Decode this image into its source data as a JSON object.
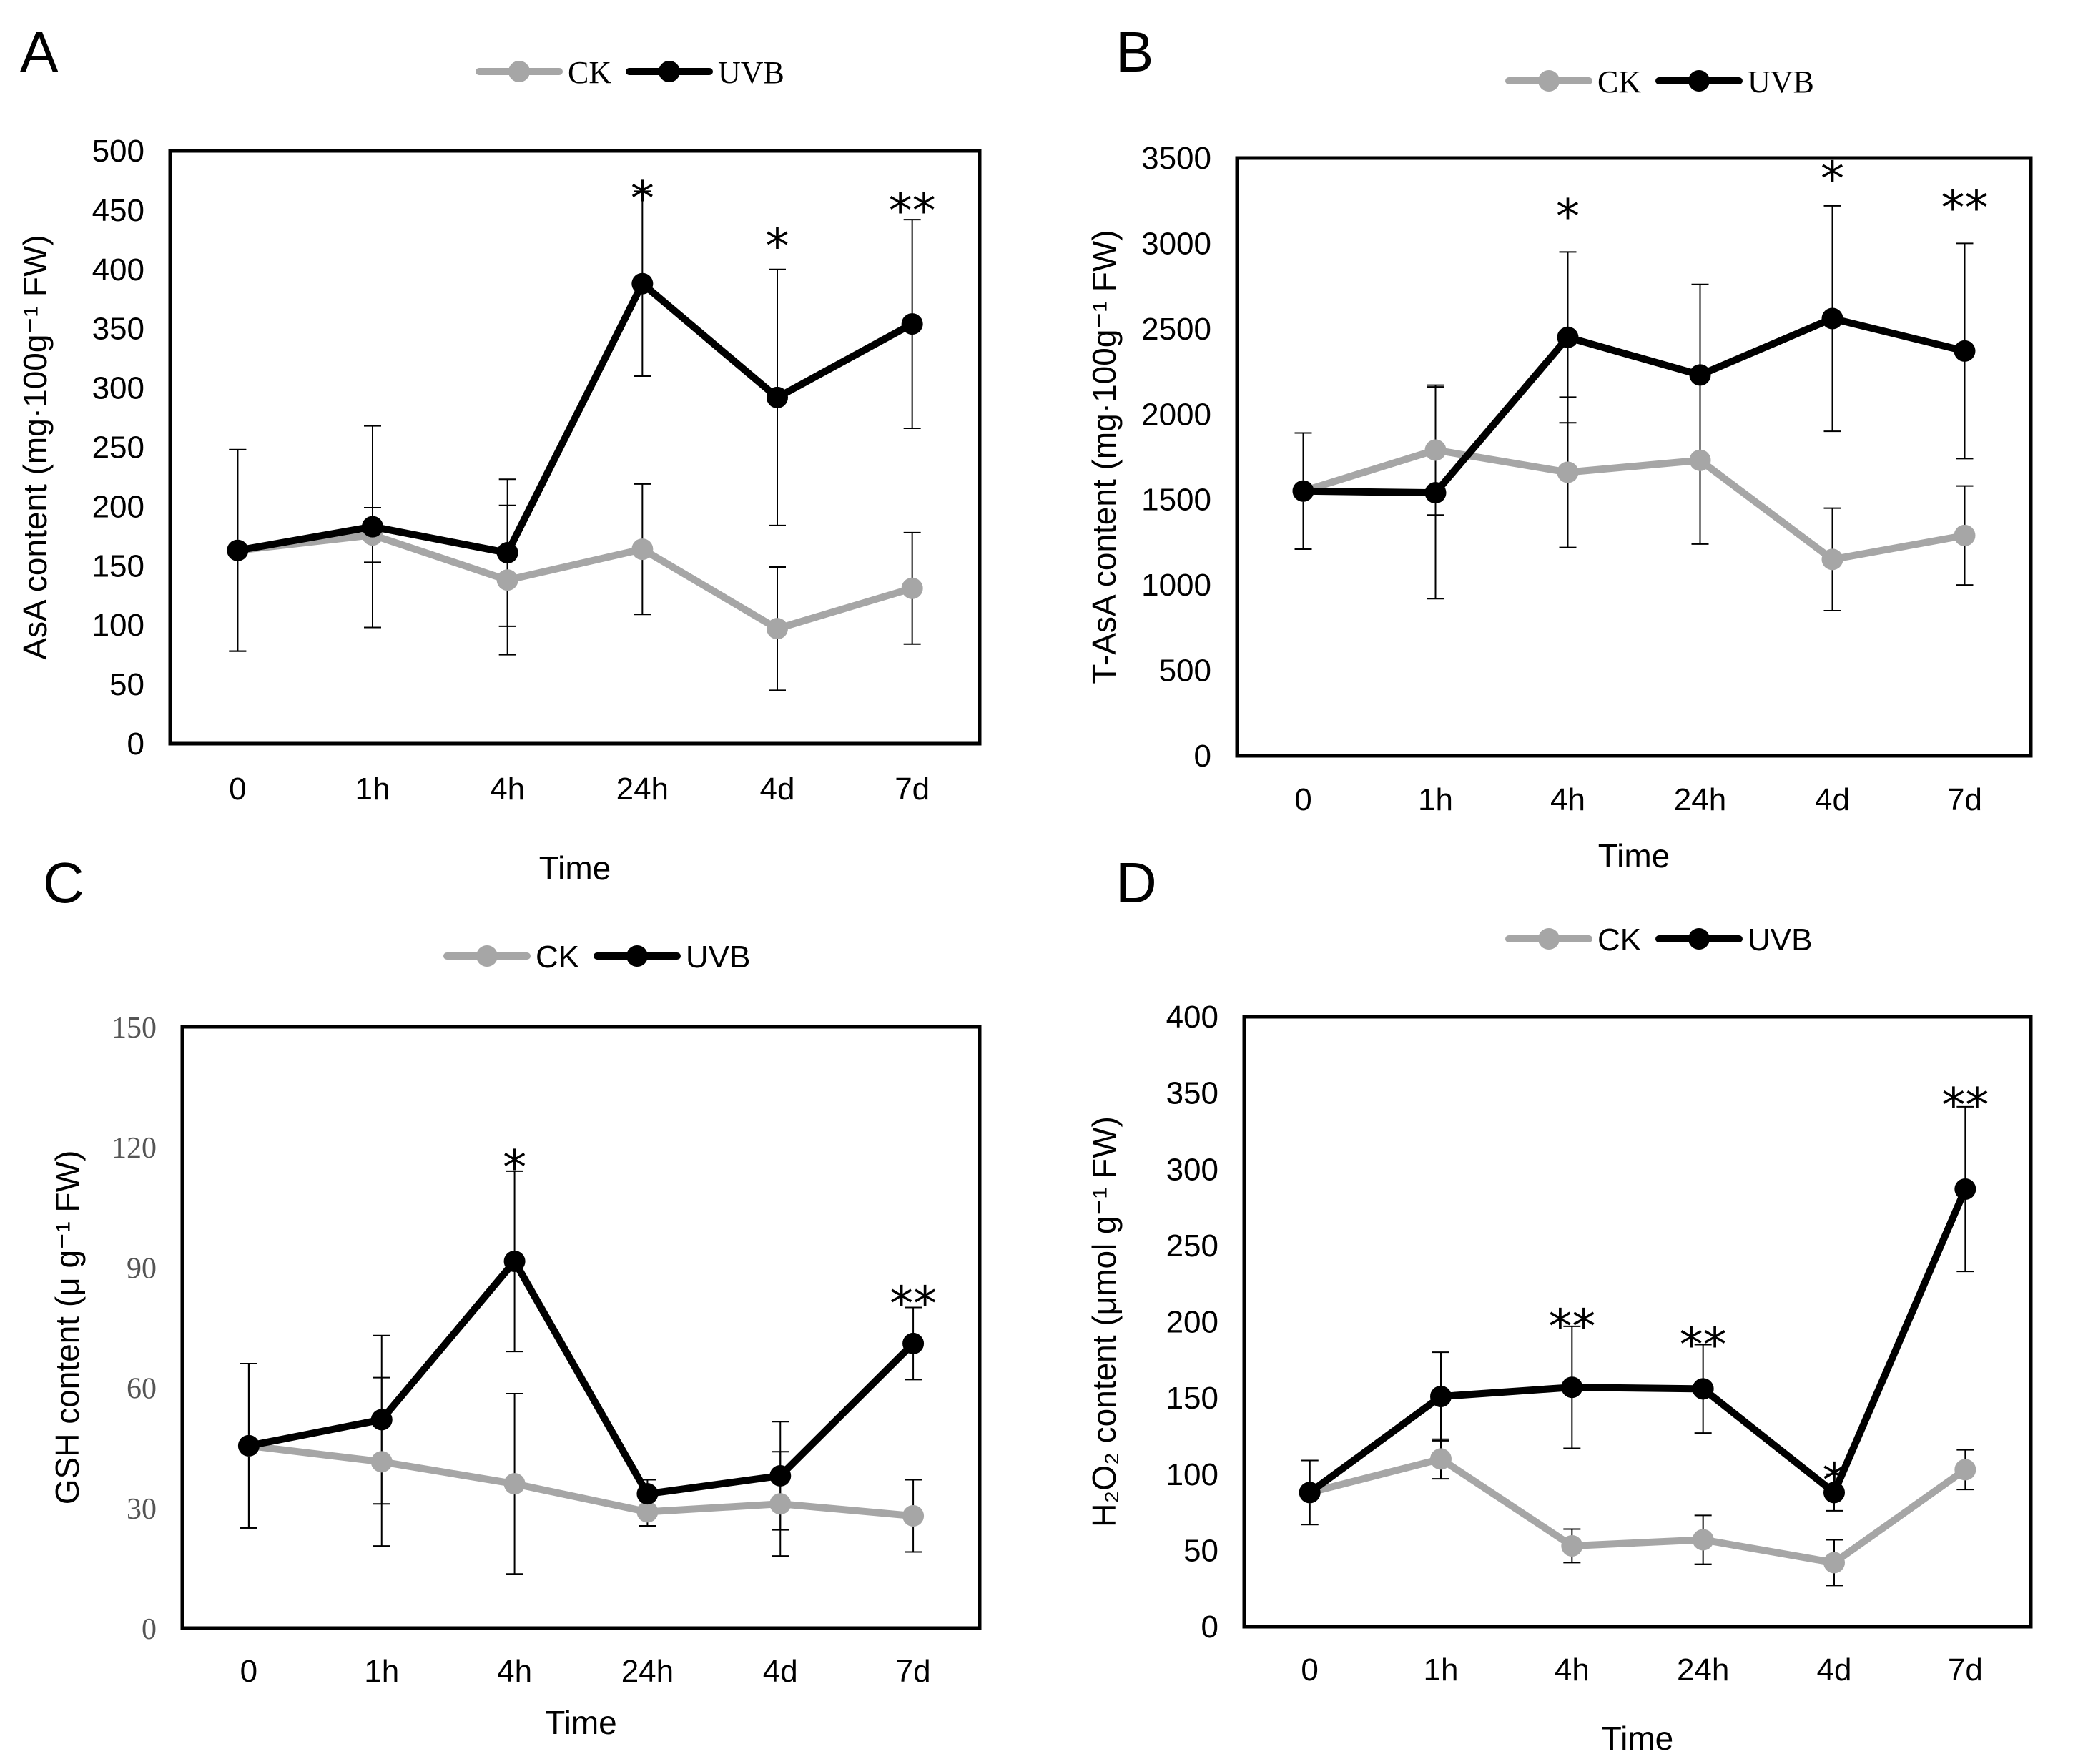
{
  "chart_data": [
    {
      "type": "line",
      "panel": "A",
      "title": "",
      "xlabel": "Time",
      "ylabel": "AsA content (mg·100g⁻¹ FW)",
      "categories": [
        "0",
        "1h",
        "4h",
        "24h",
        "4d",
        "7d"
      ],
      "ylim": [
        0,
        500
      ],
      "yticks": [
        0,
        50,
        100,
        150,
        200,
        250,
        300,
        350,
        400,
        450,
        500
      ],
      "grid": false,
      "legend": "top-center",
      "series": [
        {
          "name": "CK",
          "color": "#a6a6a6",
          "values": [
            163,
            176,
            138,
            164,
            97,
            131
          ],
          "errors": [
            85,
            23,
            63,
            55,
            52,
            47
          ]
        },
        {
          "name": "UVB",
          "color": "#000000",
          "values": [
            163,
            183,
            161,
            388,
            292,
            354
          ],
          "errors": [
            85,
            85,
            62,
            78,
            108,
            88
          ]
        }
      ],
      "significance": [
        "",
        "",
        "",
        "*",
        "*",
        "**"
      ],
      "sig_y": [
        null,
        null,
        null,
        470,
        430,
        460
      ]
    },
    {
      "type": "line",
      "panel": "B",
      "title": "",
      "xlabel": "Time",
      "ylabel": "T-AsA content (mg·100g⁻¹ FW)",
      "categories": [
        "0",
        "1h",
        "4h",
        "24h",
        "4d",
        "7d"
      ],
      "ylim": [
        0,
        3500
      ],
      "yticks": [
        0,
        500,
        1000,
        1500,
        2000,
        2500,
        3000,
        3500
      ],
      "grid": false,
      "legend": "top-center",
      "series": [
        {
          "name": "CK",
          "color": "#a6a6a6",
          "values": [
            1550,
            1790,
            1660,
            1730,
            1150,
            1290
          ],
          "errors": [
            340,
            380,
            440,
            490,
            300,
            290
          ]
        },
        {
          "name": "UVB",
          "color": "#000000",
          "values": [
            1550,
            1540,
            2450,
            2230,
            2560,
            2370
          ],
          "errors": [
            340,
            620,
            500,
            530,
            660,
            630
          ]
        }
      ],
      "significance": [
        "",
        "",
        "*",
        "",
        "*",
        "**"
      ],
      "sig_y": [
        null,
        null,
        3230,
        null,
        3450,
        3280
      ]
    },
    {
      "type": "line",
      "panel": "C",
      "title": "",
      "xlabel": "Time",
      "ylabel": "GSH content (μ g⁻¹ FW)",
      "categories": [
        "0",
        "1h",
        "4h",
        "24h",
        "4d",
        "7d"
      ],
      "ylim": [
        0,
        150
      ],
      "yticks": [
        0,
        30,
        60,
        90,
        120,
        150
      ],
      "grid": false,
      "legend": "top-center",
      "series": [
        {
          "name": "CK",
          "color": "#a6a6a6",
          "values": [
            45.5,
            41.5,
            36,
            29,
            31,
            28
          ],
          "errors": [
            20.5,
            21,
            22.5,
            3.5,
            13,
            9
          ]
        },
        {
          "name": "UVB",
          "color": "#000000",
          "values": [
            45.5,
            52,
            91.5,
            33.5,
            38,
            71
          ],
          "errors": [
            20.5,
            21,
            22.5,
            3.5,
            13.5,
            9
          ]
        }
      ],
      "significance": [
        "",
        "",
        "*",
        "",
        "",
        "**"
      ],
      "sig_y": [
        null,
        null,
        118,
        null,
        null,
        84
      ]
    },
    {
      "type": "line",
      "panel": "D",
      "title": "",
      "xlabel": "Time",
      "ylabel": "H₂O₂ content (μmol g⁻¹ FW)",
      "categories": [
        "0",
        "1h",
        "4h",
        "24h",
        "4d",
        "7d"
      ],
      "ylim": [
        0,
        400
      ],
      "yticks": [
        0,
        50,
        100,
        150,
        200,
        250,
        300,
        350,
        400
      ],
      "grid": false,
      "legend": "top-center",
      "series": [
        {
          "name": "CK",
          "color": "#a6a6a6",
          "values": [
            88,
            110,
            53,
            57,
            42,
            103
          ],
          "errors": [
            21,
            13,
            11,
            16,
            15,
            13
          ]
        },
        {
          "name": "UVB",
          "color": "#000000",
          "values": [
            88,
            151,
            157,
            156,
            88,
            287
          ],
          "errors": [
            21,
            29,
            40,
            29,
            12,
            54
          ]
        }
      ],
      "significance": [
        "",
        "",
        "**",
        "**",
        "*",
        "**"
      ],
      "sig_y": [
        null,
        null,
        205,
        193,
        104,
        350
      ]
    }
  ]
}
